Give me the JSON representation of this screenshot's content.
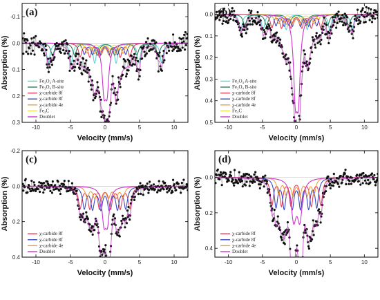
{
  "chart_data": [
    {
      "type": "scatter",
      "panel_label": "(a)",
      "xlabel": "Velocity (mm/s)",
      "ylabel": "Absorption (%)",
      "xlim": [
        -12,
        12
      ],
      "ylim": [
        -0.15,
        0.3
      ],
      "y_inverted": true,
      "xticks": [
        -10,
        -5,
        0,
        5,
        10
      ],
      "yticks": [
        -0.1,
        0.0,
        0.1,
        0.2,
        0.3
      ],
      "ytick_labels": [
        "-0.1",
        "0.0",
        "0.1",
        "0.2",
        "0.3"
      ],
      "legend_position": "bottom-left",
      "legend": [
        {
          "label": "Fe₃O₄ A-site",
          "color": "#5fd3d3"
        },
        {
          "label": "Fe₃O₄ B-site",
          "color": "#2e7d5a"
        },
        {
          "label": "χ-carbide 8f",
          "color": "#e0405a"
        },
        {
          "label": "χ-carbide 8f",
          "color": "#3a48c4"
        },
        {
          "label": "χ-carbide 4e",
          "color": "#e8a040"
        },
        {
          "label": "Fe₃C",
          "color": "#e8e050"
        },
        {
          "label": "Doublet",
          "color": "#cc33cc"
        }
      ],
      "components": [
        {
          "color": "#5fd3d3",
          "depth": 0.075,
          "width": 0.28,
          "lines": [
            -8.2,
            -4.9,
            -1.5,
            1.6,
            4.9,
            8.2
          ]
        },
        {
          "color": "#2e7d5a",
          "depth": 0.045,
          "width": 0.32,
          "lines": [
            -7.6,
            -4.4,
            -1.1,
            1.4,
            4.6,
            7.7
          ]
        },
        {
          "color": "#e0405a",
          "depth": 0.05,
          "width": 0.28,
          "lines": [
            -3.6,
            -2.2,
            -0.8,
            0.8,
            2.2,
            3.6
          ]
        },
        {
          "color": "#3a48c4",
          "depth": 0.04,
          "width": 0.28,
          "lines": [
            -3.0,
            -1.8,
            -0.6,
            0.6,
            1.8,
            3.0
          ]
        },
        {
          "color": "#e8a040",
          "depth": 0.035,
          "width": 0.28,
          "lines": [
            -2.6,
            -1.5,
            -0.5,
            0.5,
            1.6,
            2.6
          ]
        },
        {
          "color": "#e8e050",
          "depth": 0.02,
          "width": 0.3,
          "lines": [
            -3.3,
            -2.0,
            -0.6,
            0.7,
            2.0,
            3.3
          ]
        },
        {
          "color": "#cc33cc",
          "depth": 0.16,
          "width": 0.32,
          "lines": [
            -0.15,
            0.3
          ]
        }
      ],
      "noise": 0.03
    },
    {
      "type": "scatter",
      "panel_label": "(b)",
      "xlabel": "Velocity (mm/s)",
      "ylabel": "Absorption (%)",
      "xlim": [
        -12,
        12
      ],
      "ylim": [
        -0.05,
        0.5
      ],
      "y_inverted": true,
      "xticks": [
        -10,
        -5,
        0,
        5,
        10
      ],
      "yticks": [
        0.0,
        0.1,
        0.2,
        0.3,
        0.4,
        0.5
      ],
      "ytick_labels": [
        "0.0",
        "0.1",
        "0.2",
        "0.3",
        "0.4",
        "0.5"
      ],
      "legend_position": "bottom-left",
      "legend": [
        {
          "label": "Fe₃O₄ A-site",
          "color": "#5fd3d3"
        },
        {
          "label": "Fe₃O₄ B-site",
          "color": "#2e7d5a"
        },
        {
          "label": "χ-carbide 8f",
          "color": "#e0405a"
        },
        {
          "label": "χ-carbide 8f",
          "color": "#3a48c4"
        },
        {
          "label": "χ-carbide 4e",
          "color": "#e8a040"
        },
        {
          "label": "Fe₃C",
          "color": "#e8e050"
        },
        {
          "label": "Doublet",
          "color": "#cc33cc"
        }
      ],
      "components": [
        {
          "color": "#5fd3d3",
          "depth": 0.07,
          "width": 0.28,
          "lines": [
            -8.2,
            -4.9,
            -1.5,
            1.6,
            4.9,
            8.2
          ]
        },
        {
          "color": "#2e7d5a",
          "depth": 0.05,
          "width": 0.32,
          "lines": [
            -7.6,
            -4.4,
            -1.1,
            1.4,
            4.6,
            7.7
          ]
        },
        {
          "color": "#e0405a",
          "depth": 0.06,
          "width": 0.28,
          "lines": [
            -3.6,
            -2.2,
            -0.8,
            0.8,
            2.2,
            3.6
          ]
        },
        {
          "color": "#3a48c4",
          "depth": 0.05,
          "width": 0.28,
          "lines": [
            -3.0,
            -1.8,
            -0.6,
            0.6,
            1.8,
            3.0
          ]
        },
        {
          "color": "#e8a040",
          "depth": 0.04,
          "width": 0.28,
          "lines": [
            -2.6,
            -1.5,
            -0.5,
            0.5,
            1.6,
            2.6
          ]
        },
        {
          "color": "#e8e050",
          "depth": 0.02,
          "width": 0.3,
          "lines": [
            -3.3,
            -2.0,
            -0.6,
            0.7,
            2.0,
            3.3
          ]
        },
        {
          "color": "#cc33cc",
          "depth": 0.33,
          "width": 0.33,
          "lines": [
            -0.15,
            0.3
          ]
        }
      ],
      "noise": 0.03
    },
    {
      "type": "scatter",
      "panel_label": "(c)",
      "xlabel": "Velocity (mm/s)",
      "ylabel": "Absorption (%)",
      "xlim": [
        -12,
        12
      ],
      "ylim": [
        -0.2,
        0.4
      ],
      "y_inverted": true,
      "xticks": [
        -10,
        -5,
        0,
        5,
        10
      ],
      "yticks": [
        -0.2,
        0.0,
        0.2,
        0.4
      ],
      "ytick_labels": [
        "-0.2",
        "0.0",
        "0.2",
        "0.4"
      ],
      "legend_position": "bottom-left",
      "legend": [
        {
          "label": "χ-carbide 8f",
          "color": "#e0405a"
        },
        {
          "label": "χ-carbide 8f",
          "color": "#3a48c4"
        },
        {
          "label": "χ-carbide 4e",
          "color": "#e8a040"
        },
        {
          "label": "Doublet",
          "color": "#cc33cc"
        }
      ],
      "components": [
        {
          "color": "#e0405a",
          "depth": 0.12,
          "width": 0.3,
          "lines": [
            -3.6,
            -2.2,
            -0.8,
            0.8,
            2.2,
            3.6
          ]
        },
        {
          "color": "#3a48c4",
          "depth": 0.12,
          "width": 0.3,
          "lines": [
            -3.0,
            -1.8,
            -0.6,
            0.6,
            1.8,
            3.0
          ]
        },
        {
          "color": "#e8a040",
          "depth": 0.06,
          "width": 0.3,
          "lines": [
            -2.6,
            -1.5,
            -0.5,
            0.5,
            1.6,
            2.6
          ]
        },
        {
          "color": "#cc33cc",
          "depth": 0.18,
          "width": 0.35,
          "lines": [
            -0.15,
            0.35
          ]
        }
      ],
      "noise": 0.03
    },
    {
      "type": "scatter",
      "panel_label": "(d)",
      "xlabel": "Velocity (mm/s)",
      "ylabel": "Absorption (%)",
      "xlim": [
        -12,
        12
      ],
      "ylim": [
        -0.15,
        0.45
      ],
      "y_inverted": true,
      "xticks": [
        -10,
        -5,
        0,
        5,
        10
      ],
      "yticks": [
        0.0,
        0.2,
        0.4
      ],
      "ytick_labels": [
        "0.0",
        "0.2",
        "0.4"
      ],
      "legend_position": "bottom-left",
      "legend": [
        {
          "label": "χ-carbide 8f",
          "color": "#e0405a"
        },
        {
          "label": "χ-carbide 8f",
          "color": "#3a48c4"
        },
        {
          "label": "χ-carbide 4e",
          "color": "#e8a040"
        },
        {
          "label": "Doublet",
          "color": "#cc33cc"
        }
      ],
      "components": [
        {
          "color": "#e0405a",
          "depth": 0.15,
          "width": 0.3,
          "lines": [
            -3.6,
            -2.2,
            -0.8,
            0.8,
            2.2,
            3.6
          ]
        },
        {
          "color": "#3a48c4",
          "depth": 0.16,
          "width": 0.3,
          "lines": [
            -3.0,
            -1.8,
            -0.6,
            0.6,
            1.8,
            3.0
          ]
        },
        {
          "color": "#e8a040",
          "depth": 0.09,
          "width": 0.3,
          "lines": [
            -2.6,
            -1.5,
            -0.5,
            0.5,
            1.6,
            2.6
          ]
        },
        {
          "color": "#cc33cc",
          "depth": 0.22,
          "width": 0.45,
          "lines": [
            -0.4,
            0.5
          ]
        }
      ],
      "noise": 0.035
    }
  ]
}
